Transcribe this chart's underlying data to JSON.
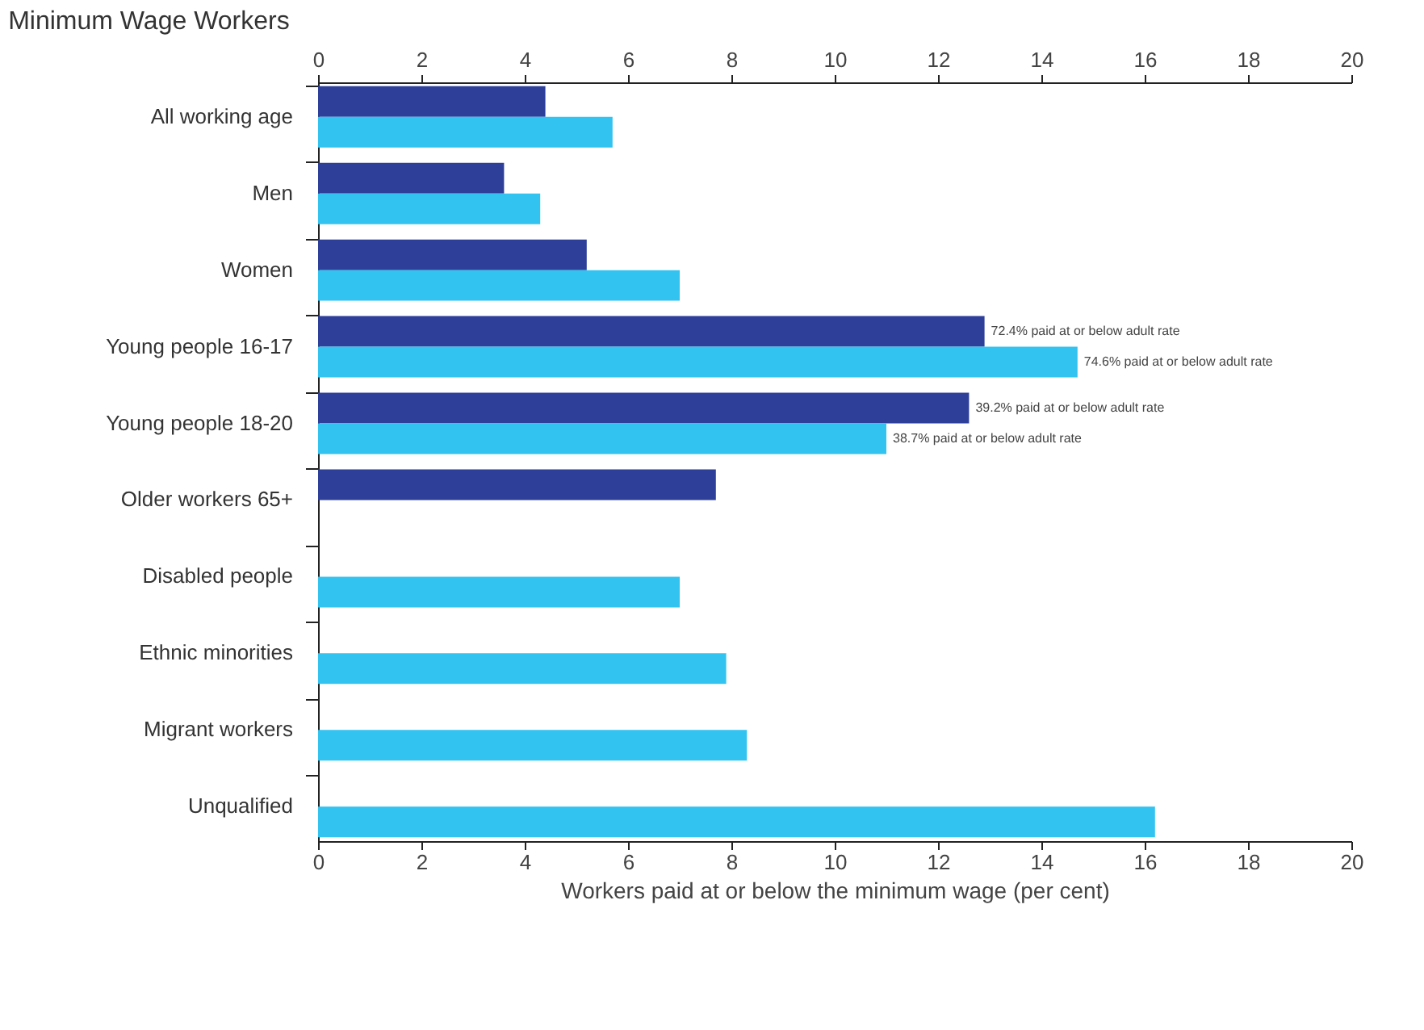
{
  "chart_data": {
    "type": "bar",
    "orientation": "horizontal",
    "title": "Minimum Wage Workers",
    "xlabel": "Workers paid at or below the minimum wage (per cent)",
    "categories": [
      "All working age",
      "Men",
      "Women",
      "Young people 16-17",
      "Young people 18-20",
      "Older workers 65+",
      "Disabled people",
      "Ethnic minorities",
      "Migrant workers",
      "Unqualified"
    ],
    "series": [
      {
        "color": "#2e3f9a",
        "values": [
          4.4,
          3.6,
          5.2,
          12.9,
          12.6,
          7.7,
          null,
          null,
          null,
          null
        ]
      },
      {
        "color": "#33c3f0",
        "values": [
          5.7,
          4.3,
          7.0,
          14.7,
          11.0,
          null,
          7.0,
          7.9,
          8.3,
          16.2
        ]
      }
    ],
    "annotations": [
      {
        "text": "72.4% paid at or below adult rate",
        "x": 12.9,
        "y": "Young people 16-17"
      },
      {
        "text": "74.6% paid at or below adult rate",
        "x": 14.7,
        "y": "Young people 16-17"
      },
      {
        "text": "39.2% paid at or below adult rate",
        "x": 12.6,
        "y": "Young people 18-20"
      },
      {
        "text": "38.7% paid at or below adult rate",
        "x": 11.0,
        "y": "Young people 18-20"
      }
    ],
    "xlim": [
      0,
      20
    ],
    "xticks": [
      0,
      2,
      4,
      6,
      8,
      10,
      12,
      14,
      16,
      18,
      20
    ],
    "x2lim": [
      0,
      20
    ],
    "x2ticks": [
      0,
      2,
      4,
      6,
      8,
      10,
      12,
      14,
      16,
      18,
      20
    ],
    "grid": false,
    "legend": false
  }
}
